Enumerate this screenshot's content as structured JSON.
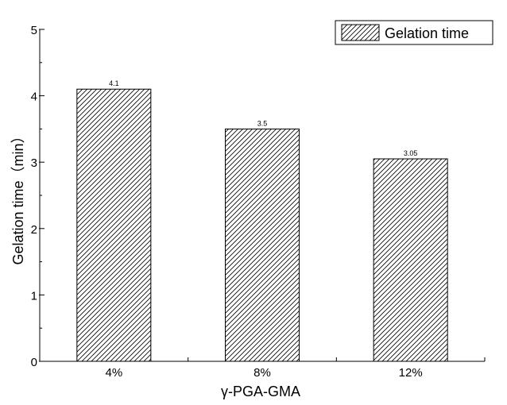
{
  "chart_data": {
    "type": "bar",
    "title": "",
    "xlabel": "γ-PGA-GMA",
    "ylabel": "Gelation time（min）",
    "categories": [
      "4%",
      "8%",
      "12%"
    ],
    "series": [
      {
        "name": "Gelation time",
        "values": [
          4.1,
          3.5,
          3.05
        ]
      }
    ],
    "data_labels": [
      "4.1",
      "3.5",
      "3.05"
    ],
    "ylim": [
      0,
      5
    ],
    "yticks": [
      0,
      1,
      2,
      3,
      4,
      5
    ],
    "ytick_labels": [
      "0",
      "1",
      "2",
      "3",
      "4",
      "5"
    ],
    "grid": false,
    "legend": {
      "position": "top-right",
      "label": "Gelation time"
    },
    "bar_fill": "diagonal-hatch",
    "colors": {
      "axis": "#000000",
      "bar_stroke": "#000000",
      "hatch": "#000000",
      "background": "#ffffff"
    }
  }
}
